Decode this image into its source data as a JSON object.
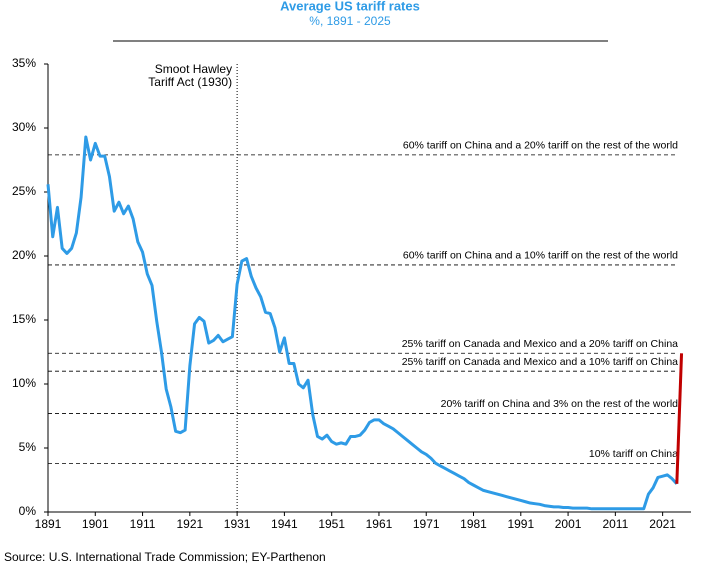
{
  "chart_data": {
    "type": "line",
    "title": "Average US tariff rates",
    "subtitle": "%, 1891 - 2025",
    "source": "Source: U.S. International Trade Commission; EY-Parthenon",
    "xlim": [
      1891,
      2027
    ],
    "ylim": [
      0,
      35
    ],
    "xticks": [
      1891,
      1901,
      1911,
      1921,
      1931,
      1941,
      1951,
      1961,
      1971,
      1981,
      1991,
      2001,
      2011,
      2021
    ],
    "yticks": [
      {
        "value": 0,
        "label": "0%"
      },
      {
        "value": 5,
        "label": "5%"
      },
      {
        "value": 10,
        "label": "10%"
      },
      {
        "value": 15,
        "label": "15%"
      },
      {
        "value": 20,
        "label": "20%"
      },
      {
        "value": 25,
        "label": "25%"
      },
      {
        "value": 30,
        "label": "30%"
      },
      {
        "value": 35,
        "label": "35%"
      }
    ],
    "series": [
      {
        "color": "#2e9be6",
        "x": [
          1891,
          1892,
          1893,
          1894,
          1895,
          1896,
          1897,
          1898,
          1899,
          1900,
          1901,
          1902,
          1903,
          1904,
          1905,
          1906,
          1907,
          1908,
          1909,
          1910,
          1911,
          1912,
          1913,
          1914,
          1915,
          1916,
          1917,
          1918,
          1919,
          1920,
          1921,
          1922,
          1923,
          1924,
          1925,
          1926,
          1927,
          1928,
          1929,
          1930,
          1931,
          1932,
          1933,
          1934,
          1935,
          1936,
          1937,
          1938,
          1939,
          1940,
          1941,
          1942,
          1943,
          1944,
          1945,
          1946,
          1947,
          1948,
          1949,
          1950,
          1951,
          1952,
          1953,
          1954,
          1955,
          1956,
          1957,
          1958,
          1959,
          1960,
          1961,
          1962,
          1963,
          1964,
          1965,
          1966,
          1967,
          1968,
          1969,
          1970,
          1971,
          1972,
          1973,
          1974,
          1975,
          1976,
          1977,
          1978,
          1979,
          1980,
          1981,
          1982,
          1983,
          1984,
          1985,
          1986,
          1987,
          1988,
          1989,
          1990,
          1991,
          1992,
          1993,
          1994,
          1995,
          1996,
          1997,
          1998,
          1999,
          2000,
          2001,
          2002,
          2003,
          2004,
          2005,
          2006,
          2007,
          2008,
          2009,
          2010,
          2011,
          2012,
          2013,
          2014,
          2015,
          2016,
          2017,
          2018,
          2019,
          2020,
          2021,
          2022,
          2023,
          2024
        ],
        "values": [
          25.6,
          21.5,
          23.8,
          20.6,
          20.2,
          20.6,
          21.8,
          24.6,
          29.3,
          27.5,
          28.8,
          27.8,
          27.8,
          26.2,
          23.5,
          24.2,
          23.3,
          23.9,
          22.9,
          21.1,
          20.3,
          18.6,
          17.7,
          14.9,
          12.5,
          9.6,
          8.2,
          6.3,
          6.2,
          6.4,
          11.4,
          14.7,
          15.2,
          14.9,
          13.2,
          13.4,
          13.8,
          13.3,
          13.5,
          13.7,
          17.8,
          19.6,
          19.8,
          18.4,
          17.5,
          16.8,
          15.6,
          15.5,
          14.4,
          12.5,
          13.6,
          11.6,
          11.6,
          10.0,
          9.7,
          10.3,
          7.6,
          5.9,
          5.7,
          6.0,
          5.5,
          5.3,
          5.4,
          5.3,
          5.9,
          5.9,
          6.0,
          6.4,
          7.0,
          7.2,
          7.2,
          6.9,
          6.7,
          6.5,
          6.2,
          5.9,
          5.6,
          5.3,
          5.0,
          4.7,
          4.5,
          4.2,
          3.8,
          3.6,
          3.4,
          3.2,
          3.0,
          2.8,
          2.6,
          2.3,
          2.1,
          1.9,
          1.7,
          1.6,
          1.5,
          1.4,
          1.3,
          1.2,
          1.1,
          1.0,
          0.9,
          0.8,
          0.7,
          0.65,
          0.6,
          0.5,
          0.45,
          0.4,
          0.4,
          0.35,
          0.35,
          0.3,
          0.3,
          0.3,
          0.3,
          0.25,
          0.25,
          0.25,
          0.25,
          0.25,
          0.25,
          0.25,
          0.25,
          0.25,
          0.25,
          0.25,
          0.25,
          1.4,
          1.9,
          2.7,
          2.8,
          2.9,
          2.6,
          2.2
        ]
      },
      {
        "color": "#c00000",
        "x": [
          2024,
          2025
        ],
        "values": [
          2.2,
          12.4
        ]
      }
    ],
    "hlines": [
      {
        "y": 27.9,
        "label": "60% tariff on China and a 20% tariff on the rest of the world"
      },
      {
        "y": 19.3,
        "label": "60% tariff on China and a 10% tariff on the rest of the world"
      },
      {
        "y": 12.4,
        "label": "25% tariff on Canada and Mexico and a 20% tariff on China"
      },
      {
        "y": 11.0,
        "label": "25% tariff on Canada and Mexico and a 10% tariff on China"
      },
      {
        "y": 7.7,
        "label": "20% tariff on China and 3% on the rest of the world"
      },
      {
        "y": 3.8,
        "label": "10% tariff on China"
      }
    ],
    "vline": {
      "x": 1931,
      "label": [
        "Smoot Hawley",
        "Tariff Act (1930)"
      ]
    }
  }
}
